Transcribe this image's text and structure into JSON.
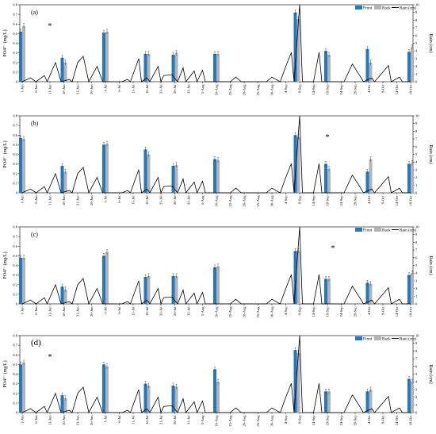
{
  "chart_data": [
    {
      "type": "bar",
      "panel_label": "(a)",
      "ylabel": "PO4³⁻ (mg/L)",
      "y2label": "Rain (cm)",
      "ylim": [
        0,
        0.8
      ],
      "yticks": [
        "0",
        "0.1",
        "0.2",
        "0.3",
        "0.4",
        "0.5",
        "0.6",
        "0.7",
        "0.8"
      ],
      "y2lim": [
        0,
        10
      ],
      "y2ticks": [
        "0",
        "1",
        "2",
        "3",
        "4",
        "5",
        "6",
        "7",
        "8",
        "9",
        "10"
      ],
      "legend": [
        "Front",
        "Back",
        "Rain (cm)"
      ],
      "legend_position": "top-right",
      "star_x": "11-Jun",
      "series": [
        {
          "name": "Front",
          "color": "#1f78c8",
          "points": [
            [
              "1-Jun",
              0.52
            ],
            [
              "16-Jun",
              0.25
            ],
            [
              "1-Jul",
              0.51
            ],
            [
              "16-Jul",
              0.29
            ],
            [
              "26-Jul",
              0.28
            ],
            [
              "10-Aug",
              0.29
            ],
            [
              "8-Sep",
              0.72
            ],
            [
              "19-Sep",
              0.32
            ],
            [
              "4-Oct",
              0.34
            ],
            [
              "19-Oct",
              0.31
            ]
          ]
        },
        {
          "name": "Back",
          "color": "#b3b3b3",
          "points": [
            [
              "1-Jun",
              0.58
            ],
            [
              "16-Jun",
              0.2
            ],
            [
              "1-Jul",
              0.52
            ],
            [
              "16-Jul",
              0.29
            ],
            [
              "26-Jul",
              0.3
            ],
            [
              "10-Aug",
              0.29
            ],
            [
              "8-Sep",
              0.65
            ],
            [
              "19-Sep",
              0.28
            ],
            [
              "4-Oct",
              0.2
            ],
            [
              "19-Oct",
              0.36
            ]
          ]
        }
      ]
    },
    {
      "type": "bar",
      "panel_label": "(b)",
      "ylabel": "PO4³⁻ (mg/L)",
      "y2label": "Rain (cm)",
      "ylim": [
        0,
        0.8
      ],
      "yticks": [
        "0",
        "0.1",
        "0.2",
        "0.3",
        "0.4",
        "0.5",
        "0.6",
        "0.7",
        "0.8"
      ],
      "y2lim": [
        0,
        10
      ],
      "y2ticks": [
        "0",
        "1",
        "2",
        "3",
        "4",
        "5",
        "6",
        "7",
        "8",
        "9",
        "10"
      ],
      "legend": [],
      "legend_position": "none",
      "star_x": "19-Sep",
      "series": [
        {
          "name": "Front",
          "color": "#1f78c8",
          "points": [
            [
              "1-Jun",
              0.57
            ],
            [
              "16-Jun",
              0.28
            ],
            [
              "1-Jul",
              0.5
            ],
            [
              "16-Jul",
              0.45
            ],
            [
              "26-Jul",
              0.28
            ],
            [
              "10-Aug",
              0.35
            ],
            [
              "8-Sep",
              0.6
            ],
            [
              "19-Sep",
              0.3
            ],
            [
              "4-Oct",
              0.22
            ],
            [
              "19-Oct",
              0.3
            ]
          ]
        },
        {
          "name": "Back",
          "color": "#b3b3b3",
          "points": [
            [
              "1-Jun",
              0.56
            ],
            [
              "16-Jun",
              0.22
            ],
            [
              "1-Jul",
              0.51
            ],
            [
              "16-Jul",
              0.4
            ],
            [
              "26-Jul",
              0.29
            ],
            [
              "10-Aug",
              0.34
            ],
            [
              "8-Sep",
              0.58
            ],
            [
              "19-Sep",
              0.25
            ],
            [
              "4-Oct",
              0.35
            ],
            [
              "19-Oct",
              0.31
            ]
          ]
        }
      ]
    },
    {
      "type": "bar",
      "panel_label": "(c)",
      "ylabel": "PO4³⁻ (mg/L)",
      "y2label": "Rain (cm)",
      "ylim": [
        0,
        0.8
      ],
      "yticks": [
        "0",
        "0.1",
        "0.2",
        "0.3",
        "0.4",
        "0.5",
        "0.6",
        "0.7",
        "0.8"
      ],
      "y2lim": [
        0,
        10
      ],
      "y2ticks": [
        "0",
        "1",
        "2",
        "3",
        "4",
        "5",
        "6",
        "7",
        "8",
        "9",
        "10"
      ],
      "legend": [
        "Front",
        "Back",
        "Rain (cm)"
      ],
      "legend_position": "top-right",
      "star_x": "21-Sep",
      "series": [
        {
          "name": "Front",
          "color": "#1f78c8",
          "points": [
            [
              "1-Jun",
              0.48
            ],
            [
              "16-Jun",
              0.18
            ],
            [
              "1-Jul",
              0.5
            ],
            [
              "16-Jul",
              0.28
            ],
            [
              "26-Jul",
              0.29
            ],
            [
              "10-Aug",
              0.38
            ],
            [
              "8-Sep",
              0.55
            ],
            [
              "19-Sep",
              0.26
            ],
            [
              "4-Oct",
              0.22
            ],
            [
              "19-Oct",
              0.3
            ]
          ]
        },
        {
          "name": "Back",
          "color": "#b3b3b3",
          "points": [
            [
              "1-Jun",
              0.48
            ],
            [
              "16-Jun",
              0.15
            ],
            [
              "1-Jul",
              0.54
            ],
            [
              "16-Jul",
              0.29
            ],
            [
              "26-Jul",
              0.29
            ],
            [
              "10-Aug",
              0.39
            ],
            [
              "8-Sep",
              0.55
            ],
            [
              "19-Sep",
              0.26
            ],
            [
              "4-Oct",
              0.21
            ],
            [
              "19-Oct",
              0.32
            ]
          ]
        }
      ]
    },
    {
      "type": "bar",
      "panel_label": "(d)",
      "ylabel": "PO4³⁻ (mg/L)",
      "y2label": "Rain (cm)",
      "ylim": [
        0,
        0.8
      ],
      "yticks": [
        "0",
        "0.1",
        "0.2",
        "0.3",
        "0.4",
        "0.5",
        "0.6",
        "0.7",
        "0.8"
      ],
      "y2lim": [
        0,
        10
      ],
      "y2ticks": [
        "0",
        "1",
        "2",
        "3",
        "4",
        "5",
        "6",
        "7",
        "8",
        "9",
        "10"
      ],
      "legend": [
        "Front",
        "Back",
        "Rain (cm)"
      ],
      "legend_position": "top-right",
      "star_x": "11-Jun",
      "series": [
        {
          "name": "Front",
          "color": "#1f78c8",
          "points": [
            [
              "1-Jun",
              0.5
            ],
            [
              "16-Jun",
              0.18
            ],
            [
              "1-Jul",
              0.5
            ],
            [
              "16-Jul",
              0.3
            ],
            [
              "26-Jul",
              0.28
            ],
            [
              "10-Aug",
              0.45
            ],
            [
              "8-Sep",
              0.65
            ],
            [
              "19-Sep",
              0.22
            ],
            [
              "4-Oct",
              0.22
            ],
            [
              "19-Oct",
              0.35
            ]
          ]
        },
        {
          "name": "Back",
          "color": "#b3b3b3",
          "points": [
            [
              "1-Jun",
              0.52
            ],
            [
              "16-Jun",
              0.15
            ],
            [
              "1-Jul",
              0.48
            ],
            [
              "16-Jul",
              0.28
            ],
            [
              "26-Jul",
              0.27
            ],
            [
              "10-Aug",
              0.32
            ],
            [
              "8-Sep",
              0.62
            ],
            [
              "19-Sep",
              0.22
            ],
            [
              "4-Oct",
              0.24
            ],
            [
              "19-Oct",
              0.32
            ]
          ]
        }
      ]
    }
  ],
  "x_axis": {
    "tick_labels": [
      "1-Jun",
      "6-Jun",
      "11-Jun",
      "16-Jun",
      "21-Jun",
      "26-Jun",
      "1-Jul",
      "6-Jul",
      "11-Jul",
      "16-Jul",
      "21-Jul",
      "26-Jul",
      "31-Jul",
      "5-Aug",
      "10-Aug",
      "15-Aug",
      "20-Aug",
      "25-Aug",
      "30-Aug",
      "4-Sep",
      "9-Sep",
      "14-Sep",
      "19-Sep",
      "24-Sep",
      "29-Sep",
      "4-Oct",
      "9-Oct",
      "14-Oct",
      "19-Oct"
    ]
  },
  "rain": {
    "name": "Rain (cm)",
    "color": "#000000",
    "points": [
      [
        "1-Jun",
        0
      ],
      [
        "4-Jun",
        0.5
      ],
      [
        "6-Jun",
        0
      ],
      [
        "9-Jun",
        0.8
      ],
      [
        "10-Jun",
        0
      ],
      [
        "13-Jun",
        2.5
      ],
      [
        "15-Jun",
        0
      ],
      [
        "18-Jun",
        0.3
      ],
      [
        "19-Jun",
        0
      ],
      [
        "21-Jun",
        2.5
      ],
      [
        "23-Jun",
        3.3
      ],
      [
        "25-Jun",
        0
      ],
      [
        "28-Jun",
        2
      ],
      [
        "30-Jun",
        0
      ],
      [
        "7-Jul",
        0
      ],
      [
        "9-Jul",
        0.3
      ],
      [
        "10-Jul",
        0
      ],
      [
        "13-Jul",
        3
      ],
      [
        "14-Jul",
        0
      ],
      [
        "16-Jul",
        0.5
      ],
      [
        "17-Jul",
        0
      ],
      [
        "20-Jul",
        2
      ],
      [
        "21-Jul",
        0
      ],
      [
        "22-Jul",
        0.8
      ],
      [
        "25-Jul",
        0.9
      ],
      [
        "27-Jul",
        0
      ],
      [
        "29-Jul",
        1.8
      ],
      [
        "30-Jul",
        0
      ],
      [
        "2-Aug",
        1.4
      ],
      [
        "3-Aug",
        0
      ],
      [
        "5-Aug",
        1.5
      ],
      [
        "6-Aug",
        0
      ],
      [
        "15-Aug",
        0
      ],
      [
        "17-Aug",
        0.6
      ],
      [
        "19-Aug",
        0
      ],
      [
        "28-Aug",
        0
      ],
      [
        "30-Aug",
        0.6
      ],
      [
        "2-Sep",
        0
      ],
      [
        "4-Sep",
        2
      ],
      [
        "6-Sep",
        3.8
      ],
      [
        "7-Sep",
        0
      ],
      [
        "9-Sep",
        10
      ],
      [
        "10-Sep",
        0
      ],
      [
        "14-Sep",
        0
      ],
      [
        "16-Sep",
        3.8
      ],
      [
        "17-Sep",
        0
      ],
      [
        "25-Sep",
        0
      ],
      [
        "28-Sep",
        2.3
      ],
      [
        "1-Oct",
        0.6
      ],
      [
        "2-Oct",
        0
      ],
      [
        "5-Oct",
        0.5
      ],
      [
        "6-Oct",
        0
      ],
      [
        "11-Oct",
        2.1
      ],
      [
        "12-Oct",
        0
      ],
      [
        "15-Oct",
        0.6
      ],
      [
        "16-Oct",
        0
      ],
      [
        "19-Oct",
        0
      ]
    ]
  }
}
